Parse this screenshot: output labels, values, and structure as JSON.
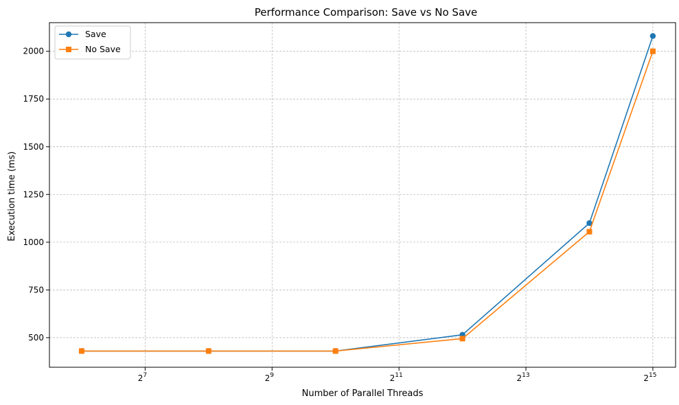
{
  "chart_data": {
    "type": "line",
    "title": "Performance Comparison: Save vs No Save",
    "xlabel": "Number of Parallel Threads",
    "ylabel": "Execution time (ms)",
    "x_scale": "log2",
    "x": [
      64,
      256,
      1024,
      4096,
      16384,
      32768
    ],
    "xlim": [
      45,
      42000
    ],
    "ylim": [
      345,
      2150
    ],
    "x_ticks": [
      {
        "value": 128,
        "base": "2",
        "exp": "7"
      },
      {
        "value": 512,
        "base": "2",
        "exp": "9"
      },
      {
        "value": 2048,
        "base": "2",
        "exp": "11"
      },
      {
        "value": 8192,
        "base": "2",
        "exp": "13"
      },
      {
        "value": 32768,
        "base": "2",
        "exp": "15"
      }
    ],
    "y_ticks": [
      500,
      750,
      1000,
      1250,
      1500,
      1750,
      2000
    ],
    "grid": true,
    "legend_position": "top-left",
    "series": [
      {
        "name": "Save",
        "color": "#1f77b4",
        "marker": "circle",
        "values": [
          430,
          430,
          430,
          515,
          1100,
          2080
        ]
      },
      {
        "name": "No Save",
        "color": "#ff7f0e",
        "marker": "square",
        "values": [
          430,
          430,
          430,
          495,
          1055,
          2000
        ]
      }
    ]
  }
}
